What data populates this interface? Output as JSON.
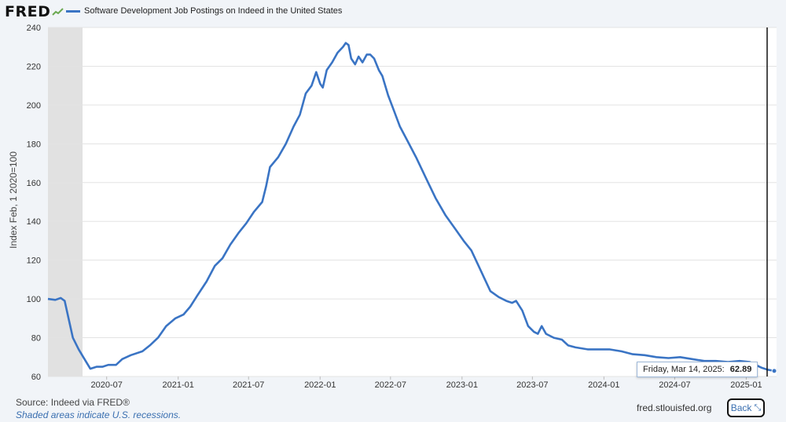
{
  "header": {
    "logo_text": "FRED",
    "legend_label": "Software Development Job Postings on Indeed in the United States",
    "series_color": "#3a74c4"
  },
  "footer": {
    "source": "Source: Indeed via FRED®",
    "shaded_note": "Shaded areas indicate U.S. recessions.",
    "site": "fred.stlouisfed.org",
    "back_label": "Back"
  },
  "tooltip": {
    "date_label": "Friday, Mar 14, 2025:",
    "value_label": "62.89"
  },
  "chart_data": {
    "type": "line",
    "title": "Software Development Job Postings on Indeed in the United States",
    "ylabel": "Index Feb, 1 2020=100",
    "xlabel": "",
    "ylim": [
      60,
      240
    ],
    "xlim": [
      "2020-02-01",
      "2025-03-20"
    ],
    "yticks": [
      60,
      80,
      100,
      120,
      140,
      160,
      180,
      200,
      220,
      240
    ],
    "xticks": [
      "2020-07",
      "2021-01",
      "2021-07",
      "2022-01",
      "2022-07",
      "2023-01",
      "2023-07",
      "2024-01",
      "2024-07",
      "2025-01"
    ],
    "recession": {
      "start": "2020-02-01",
      "end": "2020-04-30"
    },
    "grid": true,
    "series": [
      {
        "name": "Software Development Job Postings on Indeed in the United States",
        "color": "#3a74c4",
        "points": [
          [
            "2020-02-01",
            100
          ],
          [
            "2020-02-20",
            99.5
          ],
          [
            "2020-03-05",
            100.5
          ],
          [
            "2020-03-15",
            99
          ],
          [
            "2020-03-25",
            90
          ],
          [
            "2020-04-05",
            80
          ],
          [
            "2020-04-20",
            74
          ],
          [
            "2020-05-05",
            69
          ],
          [
            "2020-05-20",
            64
          ],
          [
            "2020-06-05",
            65
          ],
          [
            "2020-06-20",
            65
          ],
          [
            "2020-07-05",
            66
          ],
          [
            "2020-07-25",
            66
          ],
          [
            "2020-08-10",
            69
          ],
          [
            "2020-09-01",
            71
          ],
          [
            "2020-10-01",
            73
          ],
          [
            "2020-10-20",
            76
          ],
          [
            "2020-11-10",
            80
          ],
          [
            "2020-12-01",
            86
          ],
          [
            "2020-12-25",
            90
          ],
          [
            "2021-01-15",
            92
          ],
          [
            "2021-02-01",
            96
          ],
          [
            "2021-02-20",
            102
          ],
          [
            "2021-03-15",
            109
          ],
          [
            "2021-04-05",
            117
          ],
          [
            "2021-04-25",
            121
          ],
          [
            "2021-05-15",
            128
          ],
          [
            "2021-06-05",
            134
          ],
          [
            "2021-06-25",
            139
          ],
          [
            "2021-07-15",
            145
          ],
          [
            "2021-08-05",
            150
          ],
          [
            "2021-08-15",
            158
          ],
          [
            "2021-08-25",
            168
          ],
          [
            "2021-09-15",
            173
          ],
          [
            "2021-10-05",
            180
          ],
          [
            "2021-10-25",
            189
          ],
          [
            "2021-11-10",
            195
          ],
          [
            "2021-11-25",
            206
          ],
          [
            "2021-12-10",
            210
          ],
          [
            "2021-12-22",
            217
          ],
          [
            "2022-01-01",
            211
          ],
          [
            "2022-01-08",
            209
          ],
          [
            "2022-01-18",
            218
          ],
          [
            "2022-02-01",
            222
          ],
          [
            "2022-02-15",
            227
          ],
          [
            "2022-03-01",
            230
          ],
          [
            "2022-03-08",
            232
          ],
          [
            "2022-03-15",
            231
          ],
          [
            "2022-03-22",
            224
          ],
          [
            "2022-04-01",
            221
          ],
          [
            "2022-04-10",
            225
          ],
          [
            "2022-04-20",
            222
          ],
          [
            "2022-05-01",
            226
          ],
          [
            "2022-05-10",
            226
          ],
          [
            "2022-05-20",
            224
          ],
          [
            "2022-06-01",
            218
          ],
          [
            "2022-06-10",
            215
          ],
          [
            "2022-06-25",
            205
          ],
          [
            "2022-07-10",
            197
          ],
          [
            "2022-07-25",
            189
          ],
          [
            "2022-08-15",
            181
          ],
          [
            "2022-09-05",
            173
          ],
          [
            "2022-10-01",
            162
          ],
          [
            "2022-10-25",
            152
          ],
          [
            "2022-11-20",
            143
          ],
          [
            "2022-12-15",
            136
          ],
          [
            "2023-01-05",
            130
          ],
          [
            "2023-01-25",
            125
          ],
          [
            "2023-02-15",
            116
          ],
          [
            "2023-03-01",
            110
          ],
          [
            "2023-03-15",
            104
          ],
          [
            "2023-04-05",
            101
          ],
          [
            "2023-04-25",
            99
          ],
          [
            "2023-05-10",
            98
          ],
          [
            "2023-05-20",
            99
          ],
          [
            "2023-06-05",
            94
          ],
          [
            "2023-06-20",
            86
          ],
          [
            "2023-07-05",
            83
          ],
          [
            "2023-07-15",
            82
          ],
          [
            "2023-07-25",
            86
          ],
          [
            "2023-08-05",
            82
          ],
          [
            "2023-08-25",
            80
          ],
          [
            "2023-09-15",
            79
          ],
          [
            "2023-10-01",
            76
          ],
          [
            "2023-10-20",
            75
          ],
          [
            "2023-11-20",
            74
          ],
          [
            "2023-12-20",
            74
          ],
          [
            "2024-01-15",
            74
          ],
          [
            "2024-02-15",
            73
          ],
          [
            "2024-03-15",
            71.5
          ],
          [
            "2024-04-15",
            71
          ],
          [
            "2024-05-15",
            70
          ],
          [
            "2024-06-15",
            69.5
          ],
          [
            "2024-07-15",
            70
          ],
          [
            "2024-08-15",
            69
          ],
          [
            "2024-09-15",
            68
          ],
          [
            "2024-10-15",
            68
          ],
          [
            "2024-11-15",
            67.5
          ],
          [
            "2024-12-15",
            68
          ],
          [
            "2025-01-10",
            67.5
          ],
          [
            "2025-01-25",
            66
          ],
          [
            "2025-02-10",
            64.5
          ],
          [
            "2025-02-25",
            63.5
          ],
          [
            "2025-03-14",
            62.89
          ],
          [
            "2025-03-20",
            63.5
          ]
        ]
      }
    ]
  }
}
